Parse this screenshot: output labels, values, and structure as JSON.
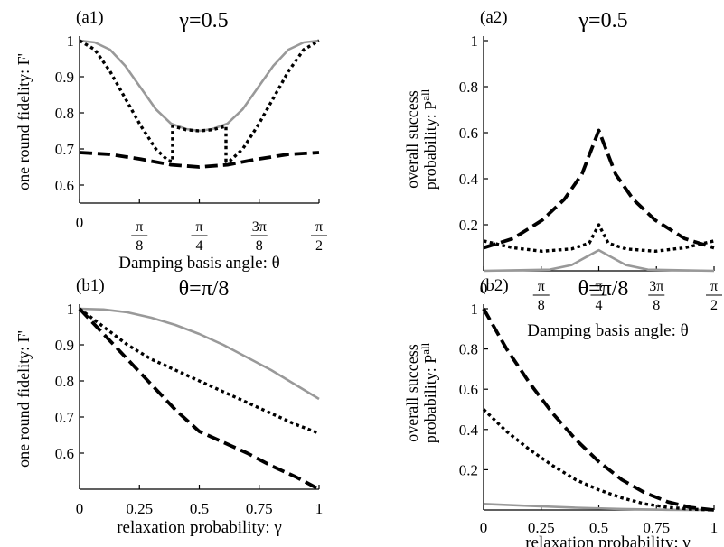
{
  "chart_data": [
    {
      "id": "a1",
      "type": "line",
      "panel_label": "(a1)",
      "title": "γ=0.5",
      "xlabel": "Damping basis angle: θ",
      "ylabel": "one round fidelity: F'",
      "xlim": [
        0,
        1.5708
      ],
      "ylim": [
        0.55,
        1.0
      ],
      "x_ticks": [
        {
          "value": 0,
          "label": "0"
        },
        {
          "value": 0.3927,
          "num": "π",
          "den": "8"
        },
        {
          "value": 0.7854,
          "num": "π",
          "den": "4"
        },
        {
          "value": 1.1781,
          "num": "3π",
          "den": "8"
        },
        {
          "value": 1.5708,
          "num": "π",
          "den": "2"
        }
      ],
      "y_ticks": [
        {
          "value": 1.0,
          "label": "1"
        },
        {
          "value": 0.9,
          "label": "0.9"
        },
        {
          "value": 0.8,
          "label": "0.8"
        },
        {
          "value": 0.7,
          "label": "0.7"
        },
        {
          "value": 0.6,
          "label": "0.6"
        }
      ],
      "series": [
        {
          "style": "solid",
          "color": "#999999",
          "points": [
            [
              0,
              1.0
            ],
            [
              0.1,
              0.995
            ],
            [
              0.2,
              0.975
            ],
            [
              0.3,
              0.93
            ],
            [
              0.4,
              0.87
            ],
            [
              0.5,
              0.81
            ],
            [
              0.6,
              0.77
            ],
            [
              0.7,
              0.755
            ],
            [
              0.7854,
              0.75
            ],
            [
              0.87,
              0.755
            ],
            [
              0.97,
              0.77
            ],
            [
              1.07,
              0.81
            ],
            [
              1.17,
              0.87
            ],
            [
              1.27,
              0.93
            ],
            [
              1.37,
              0.975
            ],
            [
              1.47,
              0.995
            ],
            [
              1.5708,
              1.0
            ]
          ]
        },
        {
          "style": "dotted",
          "color": "#000000",
          "points": [
            [
              0,
              1.0
            ],
            [
              0.1,
              0.975
            ],
            [
              0.2,
              0.915
            ],
            [
              0.3,
              0.84
            ],
            [
              0.4,
              0.765
            ],
            [
              0.5,
              0.7
            ],
            [
              0.58,
              0.668
            ],
            [
              0.61,
              0.665
            ],
            [
              0.61,
              0.763
            ],
            [
              0.7,
              0.753
            ],
            [
              0.7854,
              0.75
            ],
            [
              0.87,
              0.753
            ],
            [
              0.96,
              0.763
            ],
            [
              0.96,
              0.665
            ],
            [
              0.99,
              0.668
            ],
            [
              1.07,
              0.7
            ],
            [
              1.17,
              0.765
            ],
            [
              1.27,
              0.84
            ],
            [
              1.37,
              0.915
            ],
            [
              1.47,
              0.975
            ],
            [
              1.5708,
              1.0
            ]
          ]
        },
        {
          "style": "dashed",
          "color": "#000000",
          "points": [
            [
              0,
              0.69
            ],
            [
              0.2,
              0.685
            ],
            [
              0.4,
              0.672
            ],
            [
              0.6,
              0.656
            ],
            [
              0.7854,
              0.65
            ],
            [
              0.97,
              0.656
            ],
            [
              1.17,
              0.672
            ],
            [
              1.37,
              0.685
            ],
            [
              1.5708,
              0.69
            ]
          ]
        }
      ]
    },
    {
      "id": "a2",
      "type": "line",
      "panel_label": "(a2)",
      "title": "γ=0.5",
      "xlabel": "Damping basis angle: θ",
      "ylabel_line1": "overall success",
      "ylabel_line2": "probability: P",
      "ylabel_sup": "all",
      "xlim": [
        0,
        1.5708
      ],
      "ylim": [
        0,
        1.0
      ],
      "x_ticks": [
        {
          "value": 0,
          "label": "0"
        },
        {
          "value": 0.3927,
          "num": "π",
          "den": "8"
        },
        {
          "value": 0.7854,
          "num": "π",
          "den": "4"
        },
        {
          "value": 1.1781,
          "num": "3π",
          "den": "8"
        },
        {
          "value": 1.5708,
          "num": "π",
          "den": "2"
        }
      ],
      "y_ticks": [
        {
          "value": 1.0,
          "label": "1"
        },
        {
          "value": 0.8,
          "label": "0.8"
        },
        {
          "value": 0.6,
          "label": "0.6"
        },
        {
          "value": 0.4,
          "label": "0.4"
        },
        {
          "value": 0.2,
          "label": "0.2"
        }
      ],
      "series": [
        {
          "style": "solid",
          "color": "#999999",
          "points": [
            [
              0,
              0.0
            ],
            [
              0.45,
              0.005
            ],
            [
              0.6,
              0.025
            ],
            [
              0.7,
              0.06
            ],
            [
              0.7854,
              0.09
            ],
            [
              0.87,
              0.06
            ],
            [
              0.97,
              0.025
            ],
            [
              1.12,
              0.005
            ],
            [
              1.5708,
              0.0
            ]
          ]
        },
        {
          "style": "dotted",
          "color": "#000000",
          "points": [
            [
              0,
              0.13
            ],
            [
              0.2,
              0.1
            ],
            [
              0.4,
              0.085
            ],
            [
              0.6,
              0.095
            ],
            [
              0.72,
              0.12
            ],
            [
              0.7854,
              0.2
            ],
            [
              0.85,
              0.12
            ],
            [
              0.97,
              0.095
            ],
            [
              1.17,
              0.085
            ],
            [
              1.37,
              0.1
            ],
            [
              1.5708,
              0.13
            ]
          ]
        },
        {
          "style": "dashed",
          "color": "#000000",
          "points": [
            [
              0,
              0.1
            ],
            [
              0.2,
              0.14
            ],
            [
              0.4,
              0.22
            ],
            [
              0.55,
              0.31
            ],
            [
              0.67,
              0.42
            ],
            [
              0.7854,
              0.61
            ],
            [
              0.9,
              0.42
            ],
            [
              1.02,
              0.31
            ],
            [
              1.17,
              0.22
            ],
            [
              1.37,
              0.14
            ],
            [
              1.5708,
              0.1
            ]
          ]
        }
      ]
    },
    {
      "id": "b1",
      "type": "line",
      "panel_label": "(b1)",
      "title": "θ=π/8",
      "xlabel": "relaxation probability: γ",
      "ylabel": "one round fidelity: F'",
      "xlim": [
        0,
        1
      ],
      "ylim": [
        0.5,
        1.0
      ],
      "x_ticks": [
        {
          "value": 0,
          "label": "0"
        },
        {
          "value": 0.25,
          "label": "0.25"
        },
        {
          "value": 0.5,
          "label": "0.5"
        },
        {
          "value": 0.75,
          "label": "0.75"
        },
        {
          "value": 1,
          "label": "1"
        }
      ],
      "y_ticks": [
        {
          "value": 1.0,
          "label": "1"
        },
        {
          "value": 0.9,
          "label": "0.9"
        },
        {
          "value": 0.8,
          "label": "0.8"
        },
        {
          "value": 0.7,
          "label": "0.7"
        },
        {
          "value": 0.6,
          "label": "0.6"
        }
      ],
      "series": [
        {
          "style": "solid",
          "color": "#999999",
          "points": [
            [
              0,
              1.0
            ],
            [
              0.1,
              0.998
            ],
            [
              0.2,
              0.99
            ],
            [
              0.3,
              0.975
            ],
            [
              0.4,
              0.955
            ],
            [
              0.5,
              0.93
            ],
            [
              0.6,
              0.9
            ],
            [
              0.7,
              0.865
            ],
            [
              0.8,
              0.83
            ],
            [
              0.9,
              0.79
            ],
            [
              1.0,
              0.75
            ]
          ]
        },
        {
          "style": "dotted",
          "color": "#000000",
          "points": [
            [
              0,
              1.0
            ],
            [
              0.1,
              0.95
            ],
            [
              0.2,
              0.9
            ],
            [
              0.3,
              0.86
            ],
            [
              0.4,
              0.83
            ],
            [
              0.5,
              0.8
            ],
            [
              0.6,
              0.77
            ],
            [
              0.7,
              0.74
            ],
            [
              0.8,
              0.71
            ],
            [
              0.9,
              0.68
            ],
            [
              1.0,
              0.655
            ]
          ]
        },
        {
          "style": "dashed",
          "color": "#000000",
          "points": [
            [
              0,
              1.0
            ],
            [
              0.1,
              0.93
            ],
            [
              0.2,
              0.86
            ],
            [
              0.3,
              0.79
            ],
            [
              0.4,
              0.72
            ],
            [
              0.5,
              0.66
            ],
            [
              0.6,
              0.63
            ],
            [
              0.7,
              0.6
            ],
            [
              0.8,
              0.565
            ],
            [
              0.9,
              0.535
            ],
            [
              1.0,
              0.5
            ]
          ]
        }
      ]
    },
    {
      "id": "b2",
      "type": "line",
      "panel_label": "(b2)",
      "title": "θ=π/8",
      "xlabel": "relaxation probability: γ",
      "ylabel_line1": "overall success",
      "ylabel_line2": "probability: P",
      "ylabel_sup": "all",
      "xlim": [
        0,
        1
      ],
      "ylim": [
        0,
        1.0
      ],
      "x_ticks": [
        {
          "value": 0,
          "label": "0"
        },
        {
          "value": 0.25,
          "label": "0.25"
        },
        {
          "value": 0.5,
          "label": "0.5"
        },
        {
          "value": 0.75,
          "label": "0.75"
        },
        {
          "value": 1,
          "label": "1"
        }
      ],
      "y_ticks": [
        {
          "value": 1.0,
          "label": "1"
        },
        {
          "value": 0.8,
          "label": "0.8"
        },
        {
          "value": 0.6,
          "label": "0.6"
        },
        {
          "value": 0.4,
          "label": "0.4"
        },
        {
          "value": 0.2,
          "label": "0.2"
        }
      ],
      "series": [
        {
          "style": "solid",
          "color": "#999999",
          "points": [
            [
              0,
              0.03
            ],
            [
              0.2,
              0.02
            ],
            [
              0.4,
              0.011
            ],
            [
              0.6,
              0.005
            ],
            [
              0.8,
              0.001
            ],
            [
              1.0,
              0.0
            ]
          ]
        },
        {
          "style": "dotted",
          "color": "#000000",
          "points": [
            [
              0,
              0.5
            ],
            [
              0.1,
              0.39
            ],
            [
              0.2,
              0.3
            ],
            [
              0.3,
              0.22
            ],
            [
              0.4,
              0.15
            ],
            [
              0.5,
              0.1
            ],
            [
              0.6,
              0.06
            ],
            [
              0.7,
              0.03
            ],
            [
              0.8,
              0.013
            ],
            [
              0.9,
              0.004
            ],
            [
              1.0,
              0.0
            ]
          ]
        },
        {
          "style": "dashed",
          "color": "#000000",
          "points": [
            [
              0,
              1.0
            ],
            [
              0.1,
              0.8
            ],
            [
              0.2,
              0.63
            ],
            [
              0.3,
              0.48
            ],
            [
              0.4,
              0.35
            ],
            [
              0.5,
              0.24
            ],
            [
              0.6,
              0.15
            ],
            [
              0.7,
              0.085
            ],
            [
              0.8,
              0.04
            ],
            [
              0.9,
              0.012
            ],
            [
              1.0,
              0.0
            ]
          ]
        }
      ]
    }
  ]
}
